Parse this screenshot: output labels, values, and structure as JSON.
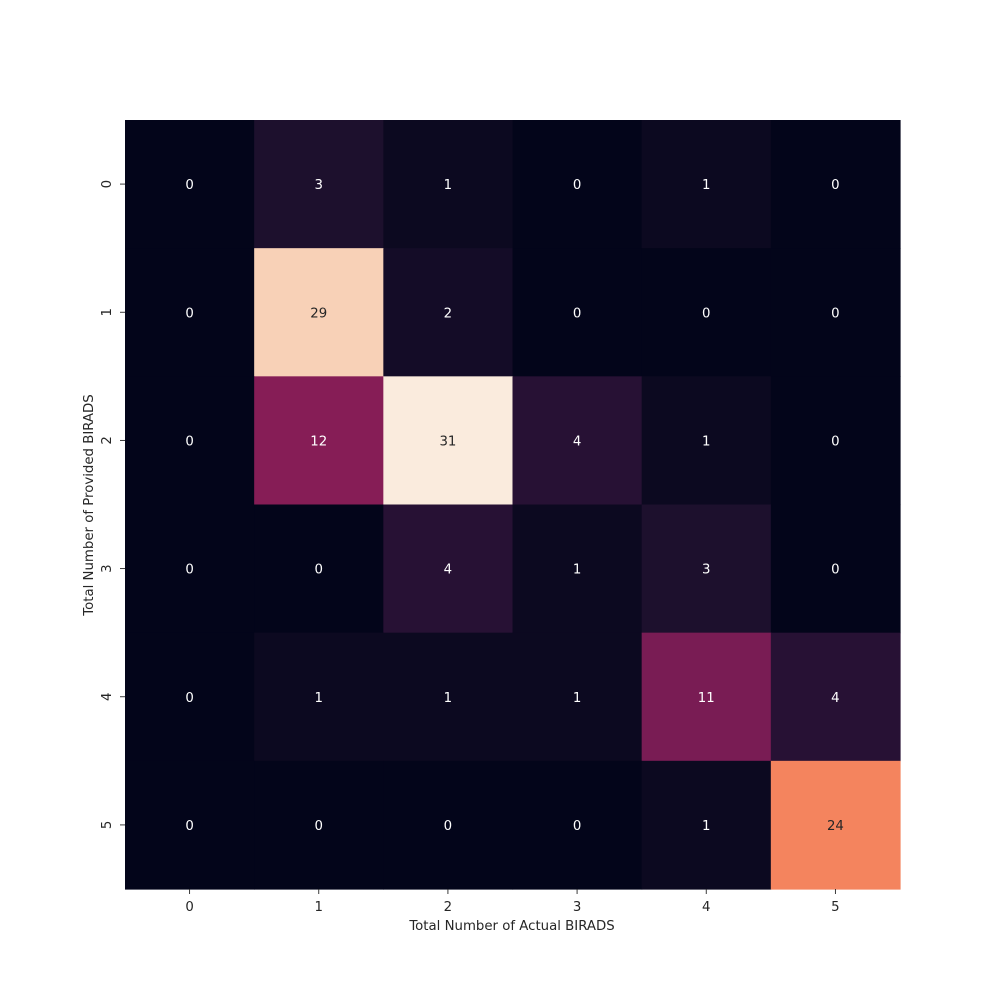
{
  "chart_data": {
    "type": "heatmap",
    "title": "",
    "xlabel": "Total Number of Actual BIRADS",
    "ylabel": "Total Number of Provided BIRADS",
    "x_categories": [
      "0",
      "1",
      "2",
      "3",
      "4",
      "5"
    ],
    "y_categories": [
      "0",
      "1",
      "2",
      "3",
      "4",
      "5"
    ],
    "values": [
      [
        0,
        3,
        1,
        0,
        1,
        0
      ],
      [
        0,
        29,
        2,
        0,
        0,
        0
      ],
      [
        0,
        12,
        31,
        4,
        1,
        0
      ],
      [
        0,
        0,
        4,
        1,
        3,
        0
      ],
      [
        0,
        1,
        1,
        1,
        11,
        4
      ],
      [
        0,
        0,
        0,
        0,
        1,
        24
      ]
    ],
    "value_range": [
      0,
      31
    ],
    "colormap": "rocket",
    "annotated": true,
    "colorbar": false,
    "grid": false
  }
}
